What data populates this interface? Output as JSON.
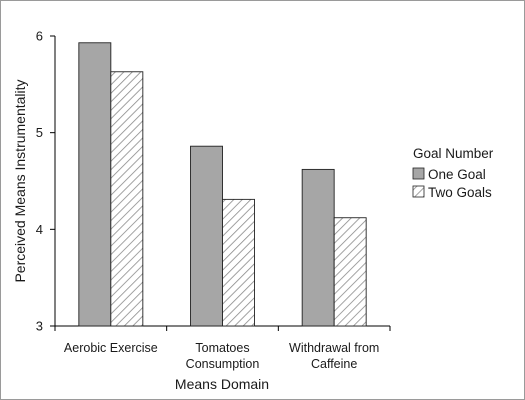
{
  "chart_data": {
    "type": "bar",
    "xlabel": "Means Domain",
    "ylabel": "Perceived Means Instrumentality",
    "ylim": [
      3,
      6
    ],
    "yticks": [
      3,
      4,
      5,
      6
    ],
    "categories": [
      [
        "Aerobic Exercise"
      ],
      [
        "Tomatoes",
        "Consumption"
      ],
      [
        "Withdrawal from",
        "Caffeine"
      ]
    ],
    "series": [
      {
        "name": "One Goal",
        "values": [
          5.93,
          4.86,
          4.62
        ],
        "fill": "#a6a6a6",
        "pattern": "solid"
      },
      {
        "name": "Two Goals",
        "values": [
          5.63,
          4.31,
          4.12
        ],
        "fill": "#ffffff",
        "pattern": "hatch"
      }
    ],
    "grid": false,
    "legend": {
      "title": "Goal Number",
      "placement": "right"
    },
    "colors": {
      "bar_outline": "#222222",
      "hatch": "#8a8a8a",
      "axis": "#000000"
    }
  }
}
